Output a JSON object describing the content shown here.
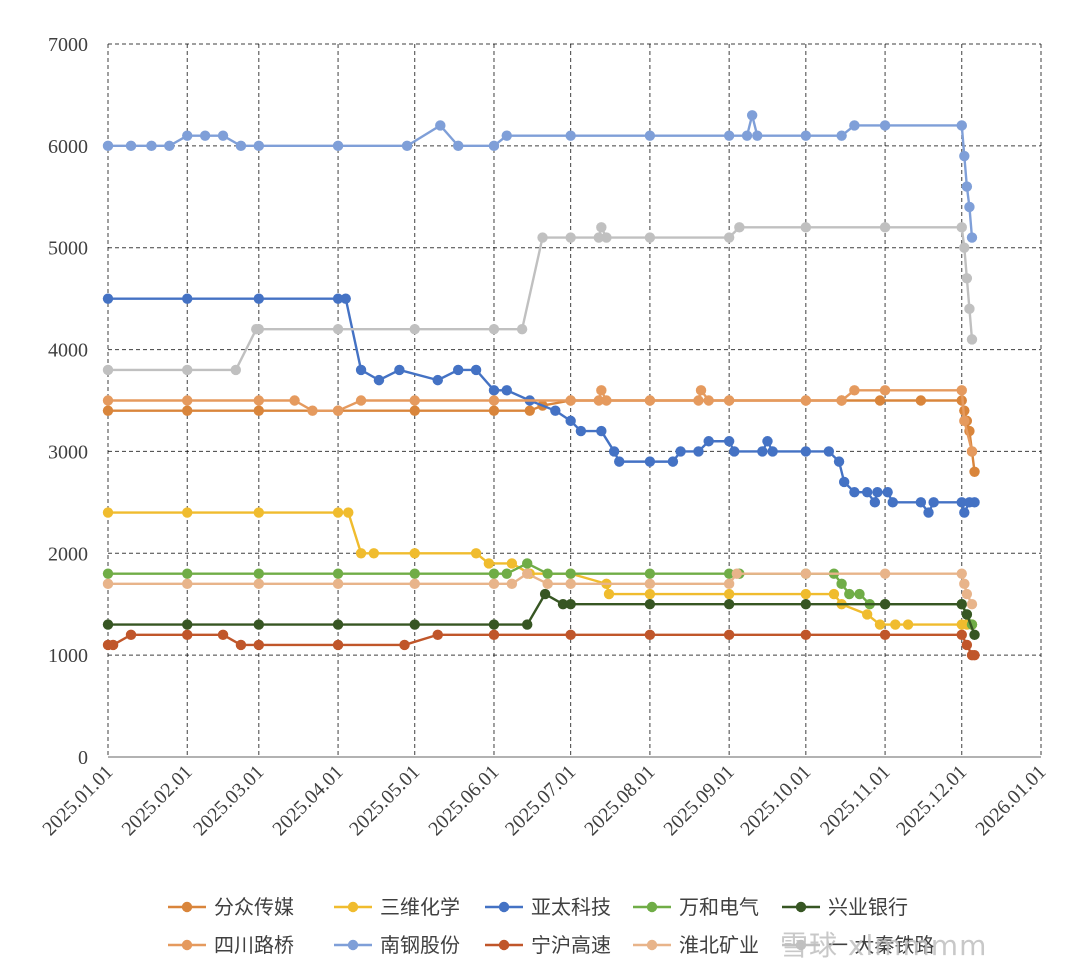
{
  "chart_data": {
    "type": "line",
    "x_is_date": true,
    "title": "",
    "xlabel": "",
    "ylabel": "",
    "ylim": [
      0,
      7000
    ],
    "yticks": [
      0,
      1000,
      2000,
      3000,
      4000,
      5000,
      6000,
      7000
    ],
    "xlim": [
      "2025-01-01",
      "2026-01-01"
    ],
    "xticks": [
      "2025-01-01",
      "2025-02-01",
      "2025-03-01",
      "2025-04-01",
      "2025-05-01",
      "2025-06-01",
      "2025-07-01",
      "2025-08-01",
      "2025-09-01",
      "2025-10-01",
      "2025-11-01",
      "2025-12-01",
      "2026-01-01"
    ],
    "xtick_labels": [
      "2025.01.01",
      "2025.02.01",
      "2025.03.01",
      "2025.04.01",
      "2025.05.01",
      "2025.06.01",
      "2025.07.01",
      "2025.08.01",
      "2025.09.01",
      "2025.10.01",
      "2025.11.01",
      "2025.12.01",
      "2026.01.01"
    ],
    "grid": true,
    "legend_position": "bottom",
    "series": [
      {
        "name": "分众传媒",
        "color": "#d9853b",
        "points": [
          [
            "2025-01-01",
            3400
          ],
          [
            "2025-02-01",
            3400
          ],
          [
            "2025-03-01",
            3400
          ],
          [
            "2025-04-01",
            3400
          ],
          [
            "2025-05-01",
            3400
          ],
          [
            "2025-06-01",
            3400
          ],
          [
            "2025-06-15",
            3400
          ],
          [
            "2025-06-20",
            3450
          ],
          [
            "2025-07-01",
            3500
          ],
          [
            "2025-08-01",
            3500
          ],
          [
            "2025-09-01",
            3500
          ],
          [
            "2025-10-01",
            3500
          ],
          [
            "2025-10-15",
            3500
          ],
          [
            "2025-10-30",
            3500
          ],
          [
            "2025-11-15",
            3500
          ],
          [
            "2025-12-01",
            3500
          ],
          [
            "2025-12-02",
            3400
          ],
          [
            "2025-12-03",
            3300
          ],
          [
            "2025-12-04",
            3200
          ],
          [
            "2025-12-05",
            3000
          ],
          [
            "2025-12-06",
            2800
          ]
        ]
      },
      {
        "name": "三维化学",
        "color": "#f0bc2e",
        "points": [
          [
            "2025-01-01",
            2400
          ],
          [
            "2025-02-01",
            2400
          ],
          [
            "2025-03-01",
            2400
          ],
          [
            "2025-04-01",
            2400
          ],
          [
            "2025-04-05",
            2400
          ],
          [
            "2025-04-10",
            2000
          ],
          [
            "2025-04-15",
            2000
          ],
          [
            "2025-05-01",
            2000
          ],
          [
            "2025-05-25",
            2000
          ],
          [
            "2025-05-30",
            1900
          ],
          [
            "2025-06-08",
            1900
          ],
          [
            "2025-06-15",
            1800
          ],
          [
            "2025-07-01",
            1800
          ],
          [
            "2025-07-15",
            1700
          ],
          [
            "2025-07-16",
            1600
          ],
          [
            "2025-08-01",
            1600
          ],
          [
            "2025-09-01",
            1600
          ],
          [
            "2025-10-01",
            1600
          ],
          [
            "2025-10-12",
            1600
          ],
          [
            "2025-10-15",
            1500
          ],
          [
            "2025-10-25",
            1400
          ],
          [
            "2025-10-30",
            1300
          ],
          [
            "2025-11-05",
            1300
          ],
          [
            "2025-11-10",
            1300
          ],
          [
            "2025-12-01",
            1300
          ],
          [
            "2025-12-03",
            1300
          ],
          [
            "2025-12-05",
            1300
          ]
        ]
      },
      {
        "name": "亚太科技",
        "color": "#4472c4",
        "points": [
          [
            "2025-01-01",
            4500
          ],
          [
            "2025-02-01",
            4500
          ],
          [
            "2025-03-01",
            4500
          ],
          [
            "2025-04-01",
            4500
          ],
          [
            "2025-04-04",
            4500
          ],
          [
            "2025-04-10",
            3800
          ],
          [
            "2025-04-17",
            3700
          ],
          [
            "2025-04-25",
            3800
          ],
          [
            "2025-05-10",
            3700
          ],
          [
            "2025-05-18",
            3800
          ],
          [
            "2025-05-25",
            3800
          ],
          [
            "2025-06-01",
            3600
          ],
          [
            "2025-06-06",
            3600
          ],
          [
            "2025-06-15",
            3500
          ],
          [
            "2025-06-25",
            3400
          ],
          [
            "2025-07-01",
            3300
          ],
          [
            "2025-07-05",
            3200
          ],
          [
            "2025-07-13",
            3200
          ],
          [
            "2025-07-18",
            3000
          ],
          [
            "2025-07-20",
            2900
          ],
          [
            "2025-08-01",
            2900
          ],
          [
            "2025-08-10",
            2900
          ],
          [
            "2025-08-13",
            3000
          ],
          [
            "2025-08-20",
            3000
          ],
          [
            "2025-08-24",
            3100
          ],
          [
            "2025-09-01",
            3100
          ],
          [
            "2025-09-03",
            3000
          ],
          [
            "2025-09-14",
            3000
          ],
          [
            "2025-09-16",
            3100
          ],
          [
            "2025-09-18",
            3000
          ],
          [
            "2025-10-01",
            3000
          ],
          [
            "2025-10-10",
            3000
          ],
          [
            "2025-10-14",
            2900
          ],
          [
            "2025-10-16",
            2700
          ],
          [
            "2025-10-20",
            2600
          ],
          [
            "2025-10-25",
            2600
          ],
          [
            "2025-10-28",
            2500
          ],
          [
            "2025-10-29",
            2600
          ],
          [
            "2025-11-02",
            2600
          ],
          [
            "2025-11-04",
            2500
          ],
          [
            "2025-11-15",
            2500
          ],
          [
            "2025-11-18",
            2400
          ],
          [
            "2025-11-20",
            2500
          ],
          [
            "2025-12-01",
            2500
          ],
          [
            "2025-12-02",
            2400
          ],
          [
            "2025-12-04",
            2500
          ],
          [
            "2025-12-06",
            2500
          ]
        ]
      },
      {
        "name": "万和电气",
        "color": "#70ad47",
        "points": [
          [
            "2025-01-01",
            1800
          ],
          [
            "2025-02-01",
            1800
          ],
          [
            "2025-03-01",
            1800
          ],
          [
            "2025-04-01",
            1800
          ],
          [
            "2025-05-01",
            1800
          ],
          [
            "2025-06-01",
            1800
          ],
          [
            "2025-06-06",
            1800
          ],
          [
            "2025-06-14",
            1900
          ],
          [
            "2025-06-22",
            1800
          ],
          [
            "2025-07-01",
            1800
          ],
          [
            "2025-08-01",
            1800
          ],
          [
            "2025-09-01",
            1800
          ],
          [
            "2025-09-05",
            1800
          ],
          [
            "2025-10-01",
            1800
          ],
          [
            "2025-10-12",
            1800
          ],
          [
            "2025-10-15",
            1700
          ],
          [
            "2025-10-18",
            1600
          ],
          [
            "2025-10-22",
            1600
          ],
          [
            "2025-10-26",
            1500
          ],
          [
            "2025-11-01",
            1500
          ],
          [
            "2025-12-01",
            1500
          ],
          [
            "2025-12-03",
            1400
          ],
          [
            "2025-12-05",
            1300
          ]
        ]
      },
      {
        "name": "兴业银行",
        "color": "#375623",
        "points": [
          [
            "2025-01-01",
            1300
          ],
          [
            "2025-02-01",
            1300
          ],
          [
            "2025-03-01",
            1300
          ],
          [
            "2025-04-01",
            1300
          ],
          [
            "2025-05-01",
            1300
          ],
          [
            "2025-06-01",
            1300
          ],
          [
            "2025-06-14",
            1300
          ],
          [
            "2025-06-21",
            1600
          ],
          [
            "2025-06-28",
            1500
          ],
          [
            "2025-07-01",
            1500
          ],
          [
            "2025-08-01",
            1500
          ],
          [
            "2025-09-01",
            1500
          ],
          [
            "2025-10-01",
            1500
          ],
          [
            "2025-11-01",
            1500
          ],
          [
            "2025-12-01",
            1500
          ],
          [
            "2025-12-03",
            1400
          ],
          [
            "2025-12-06",
            1200
          ]
        ]
      },
      {
        "name": "四川路桥",
        "color": "#e59a5e",
        "points": [
          [
            "2025-01-01",
            3500
          ],
          [
            "2025-02-01",
            3500
          ],
          [
            "2025-03-01",
            3500
          ],
          [
            "2025-03-15",
            3500
          ],
          [
            "2025-03-22",
            3400
          ],
          [
            "2025-04-01",
            3400
          ],
          [
            "2025-04-10",
            3500
          ],
          [
            "2025-05-01",
            3500
          ],
          [
            "2025-06-01",
            3500
          ],
          [
            "2025-07-01",
            3500
          ],
          [
            "2025-07-12",
            3500
          ],
          [
            "2025-07-13",
            3600
          ],
          [
            "2025-07-15",
            3500
          ],
          [
            "2025-08-01",
            3500
          ],
          [
            "2025-08-20",
            3500
          ],
          [
            "2025-08-21",
            3600
          ],
          [
            "2025-08-24",
            3500
          ],
          [
            "2025-09-01",
            3500
          ],
          [
            "2025-10-01",
            3500
          ],
          [
            "2025-10-15",
            3500
          ],
          [
            "2025-10-20",
            3600
          ],
          [
            "2025-11-01",
            3600
          ],
          [
            "2025-12-01",
            3600
          ],
          [
            "2025-12-02",
            3300
          ],
          [
            "2025-12-05",
            3000
          ]
        ]
      },
      {
        "name": "南钢股份",
        "color": "#7f9fd8",
        "points": [
          [
            "2025-01-01",
            6000
          ],
          [
            "2025-01-10",
            6000
          ],
          [
            "2025-01-18",
            6000
          ],
          [
            "2025-01-25",
            6000
          ],
          [
            "2025-02-01",
            6100
          ],
          [
            "2025-02-08",
            6100
          ],
          [
            "2025-02-15",
            6100
          ],
          [
            "2025-02-22",
            6000
          ],
          [
            "2025-03-01",
            6000
          ],
          [
            "2025-04-01",
            6000
          ],
          [
            "2025-04-28",
            6000
          ],
          [
            "2025-05-11",
            6200
          ],
          [
            "2025-05-18",
            6000
          ],
          [
            "2025-06-01",
            6000
          ],
          [
            "2025-06-06",
            6100
          ],
          [
            "2025-07-01",
            6100
          ],
          [
            "2025-08-01",
            6100
          ],
          [
            "2025-09-01",
            6100
          ],
          [
            "2025-09-08",
            6100
          ],
          [
            "2025-09-10",
            6300
          ],
          [
            "2025-09-12",
            6100
          ],
          [
            "2025-10-01",
            6100
          ],
          [
            "2025-10-15",
            6100
          ],
          [
            "2025-10-20",
            6200
          ],
          [
            "2025-11-01",
            6200
          ],
          [
            "2025-12-01",
            6200
          ],
          [
            "2025-12-02",
            5900
          ],
          [
            "2025-12-03",
            5600
          ],
          [
            "2025-12-04",
            5400
          ],
          [
            "2025-12-05",
            5100
          ]
        ]
      },
      {
        "name": "宁沪高速",
        "color": "#c0562a",
        "points": [
          [
            "2025-01-01",
            1100
          ],
          [
            "2025-01-03",
            1100
          ],
          [
            "2025-01-10",
            1200
          ],
          [
            "2025-02-01",
            1200
          ],
          [
            "2025-02-15",
            1200
          ],
          [
            "2025-02-22",
            1100
          ],
          [
            "2025-03-01",
            1100
          ],
          [
            "2025-04-01",
            1100
          ],
          [
            "2025-04-27",
            1100
          ],
          [
            "2025-05-10",
            1200
          ],
          [
            "2025-06-01",
            1200
          ],
          [
            "2025-07-01",
            1200
          ],
          [
            "2025-08-01",
            1200
          ],
          [
            "2025-09-01",
            1200
          ],
          [
            "2025-10-01",
            1200
          ],
          [
            "2025-11-01",
            1200
          ],
          [
            "2025-12-01",
            1200
          ],
          [
            "2025-12-03",
            1100
          ],
          [
            "2025-12-05",
            1000
          ],
          [
            "2025-12-06",
            1000
          ]
        ]
      },
      {
        "name": "淮北矿业",
        "color": "#e8b48a",
        "points": [
          [
            "2025-01-01",
            1700
          ],
          [
            "2025-02-01",
            1700
          ],
          [
            "2025-03-01",
            1700
          ],
          [
            "2025-04-01",
            1700
          ],
          [
            "2025-05-01",
            1700
          ],
          [
            "2025-06-01",
            1700
          ],
          [
            "2025-06-08",
            1700
          ],
          [
            "2025-06-14",
            1800
          ],
          [
            "2025-06-22",
            1700
          ],
          [
            "2025-07-01",
            1700
          ],
          [
            "2025-08-01",
            1700
          ],
          [
            "2025-09-01",
            1700
          ],
          [
            "2025-09-04",
            1800
          ],
          [
            "2025-10-01",
            1800
          ],
          [
            "2025-11-01",
            1800
          ],
          [
            "2025-12-01",
            1800
          ],
          [
            "2025-12-02",
            1700
          ],
          [
            "2025-12-03",
            1600
          ],
          [
            "2025-12-05",
            1500
          ]
        ]
      },
      {
        "name": "",
        "color": "#c0c0c0",
        "points": [
          [
            "2025-01-01",
            3800
          ],
          [
            "2025-02-01",
            3800
          ],
          [
            "2025-02-20",
            3800
          ],
          [
            "2025-02-28",
            4200
          ],
          [
            "2025-03-01",
            4200
          ],
          [
            "2025-04-01",
            4200
          ],
          [
            "2025-05-01",
            4200
          ],
          [
            "2025-06-01",
            4200
          ],
          [
            "2025-06-12",
            4200
          ],
          [
            "2025-06-20",
            5100
          ],
          [
            "2025-07-01",
            5100
          ],
          [
            "2025-07-12",
            5100
          ],
          [
            "2025-07-13",
            5200
          ],
          [
            "2025-07-15",
            5100
          ],
          [
            "2025-08-01",
            5100
          ],
          [
            "2025-09-01",
            5100
          ],
          [
            "2025-09-05",
            5200
          ],
          [
            "2025-10-01",
            5200
          ],
          [
            "2025-11-01",
            5200
          ],
          [
            "2025-12-01",
            5200
          ],
          [
            "2025-12-02",
            5000
          ],
          [
            "2025-12-03",
            4700
          ],
          [
            "2025-12-04",
            4400
          ],
          [
            "2025-12-05",
            4100
          ]
        ]
      }
    ]
  },
  "legend": {
    "row1": [
      "分众传媒",
      "三维化学",
      "亚太科技",
      "万和电气",
      "兴业银行"
    ],
    "row2": [
      "四川路桥",
      "南钢股份",
      "宁沪高速",
      "淮北矿业",
      "一 大秦铁路"
    ]
  },
  "watermark": "雪球 xlmmmm"
}
